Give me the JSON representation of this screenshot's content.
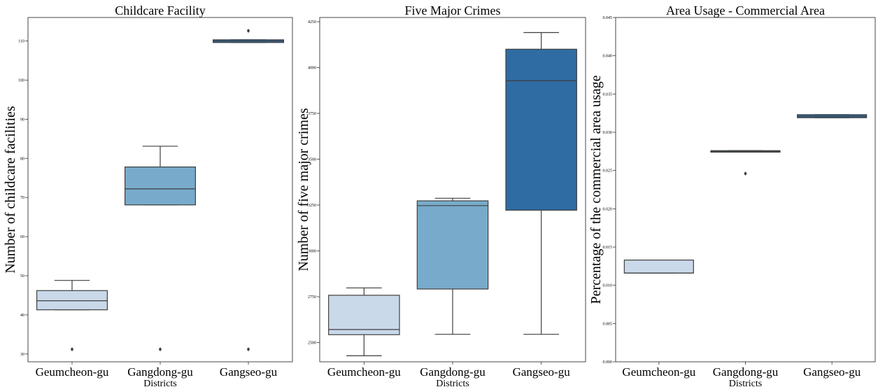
{
  "chart_data": [
    {
      "type": "box",
      "title": "Childcare Facility",
      "xlabel": "Districts",
      "ylabel": "Number of childcare facilities",
      "categories": [
        "Geumcheon-gu",
        "Gangdong-gu",
        "Gangseo-gu"
      ],
      "ylim": [
        28,
        116
      ],
      "yticks": [
        30,
        40,
        50,
        60,
        70,
        80,
        90,
        100,
        110
      ],
      "ytick_labels": [
        "30",
        "40",
        "50",
        "60",
        "70",
        "80",
        "90",
        "100",
        "110"
      ],
      "boxes": [
        {
          "category": "Geumcheon-gu",
          "whisker_low": 41.3,
          "q1": 41.3,
          "median": 43.6,
          "q3": 46.2,
          "whisker_high": 48.8,
          "fliers": [
            31.2
          ],
          "color": "#c9d9ea"
        },
        {
          "category": "Gangdong-gu",
          "whisker_low": 68.1,
          "q1": 68.1,
          "median": 72.2,
          "q3": 77.8,
          "whisker_high": 83.1,
          "fliers": [
            31.2
          ],
          "color": "#78abcb"
        },
        {
          "category": "Gangseo-gu",
          "whisker_low": 109.6,
          "q1": 109.6,
          "median": 110.0,
          "q3": 110.3,
          "whisker_high": 110.3,
          "fliers": [
            112.6,
            31.2
          ],
          "color": "#2f6ca3"
        }
      ]
    },
    {
      "type": "box",
      "title": "Five Major Crimes",
      "xlabel": "Districts",
      "ylabel": "Number of five major crimes",
      "categories": [
        "Geumcheon-gu",
        "Gangdong-gu",
        "Gangseo-gu"
      ],
      "ylim": [
        2395,
        4273
      ],
      "yticks": [
        2500,
        2750,
        3000,
        3250,
        3500,
        3750,
        4000,
        4250
      ],
      "ytick_labels": [
        "2500",
        "2750",
        "3000",
        "3250",
        "3500",
        "3750",
        "4000",
        "4250"
      ],
      "boxes": [
        {
          "category": "Geumcheon-gu",
          "whisker_low": 2428,
          "q1": 2543,
          "median": 2571,
          "q3": 2758,
          "whisker_high": 2798,
          "fliers": [],
          "color": "#c9d9ea"
        },
        {
          "category": "Gangdong-gu",
          "whisker_low": 2545,
          "q1": 2792,
          "median": 3247,
          "q3": 3273,
          "whisker_high": 3287,
          "fliers": [],
          "color": "#78abcb"
        },
        {
          "category": "Gangseo-gu",
          "whisker_low": 2545,
          "q1": 3222,
          "median": 3928,
          "q3": 4100,
          "whisker_high": 4191,
          "fliers": [],
          "color": "#2f6ca3"
        }
      ]
    },
    {
      "type": "box",
      "title": "Area Usage - Commercial Area",
      "xlabel": "Districts",
      "ylabel": "Percentage of the commercial area usage",
      "categories": [
        "Geumcheon-gu",
        "Gangdong-gu",
        "Gangseo-gu"
      ],
      "ylim": [
        0.0,
        0.045
      ],
      "yticks": [
        0.0,
        0.005,
        0.01,
        0.015,
        0.02,
        0.025,
        0.03,
        0.035,
        0.04,
        0.045
      ],
      "ytick_labels": [
        "0.000",
        "0.005",
        "0.010",
        "0.015",
        "0.020",
        "0.025",
        "0.030",
        "0.035",
        "0.040",
        "0.045"
      ],
      "boxes": [
        {
          "category": "Geumcheon-gu",
          "whisker_low": 0.0116,
          "q1": 0.0116,
          "median": 0.0116,
          "q3": 0.0133,
          "whisker_high": 0.0133,
          "fliers": [],
          "color": "#c9d9ea"
        },
        {
          "category": "Gangdong-gu",
          "whisker_low": 0.0274,
          "q1": 0.0274,
          "median": 0.0275,
          "q3": 0.0276,
          "whisker_high": 0.0276,
          "fliers": [
            0.0246
          ],
          "color": "#78abcb"
        },
        {
          "category": "Gangseo-gu",
          "whisker_low": 0.0319,
          "q1": 0.0319,
          "median": 0.0321,
          "q3": 0.0323,
          "whisker_high": 0.0323,
          "fliers": [],
          "color": "#2f6ca3"
        }
      ]
    }
  ]
}
